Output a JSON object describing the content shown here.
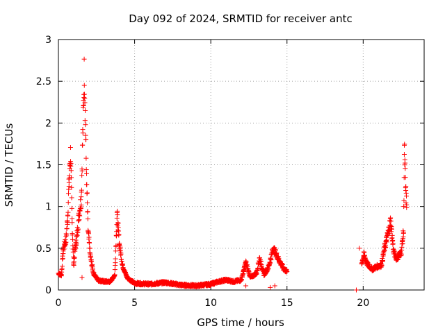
{
  "chart_data": {
    "type": "scatter",
    "title": "Day 092 of 2024, SRMTID for receiver antc",
    "xlabel": "GPS time / hours",
    "ylabel": "SRMTID / TECUs",
    "xlim": [
      0,
      24
    ],
    "ylim": [
      0,
      3
    ],
    "xticks": [
      0,
      5,
      10,
      15,
      20
    ],
    "xtick_labels": [
      "0",
      "5",
      "10",
      "15",
      "20"
    ],
    "yticks": [
      0,
      0.5,
      1,
      1.5,
      2,
      2.5,
      3
    ],
    "ytick_labels": [
      "0",
      "0.5",
      "1",
      "1.5",
      "2",
      "2.5",
      "3"
    ],
    "grid": true,
    "marker": "+",
    "color": "#ff0000",
    "anchors": [
      [
        0.0,
        0.2
      ],
      [
        0.2,
        0.18
      ],
      [
        0.3,
        0.45
      ],
      [
        0.4,
        0.55
      ],
      [
        0.5,
        0.6
      ],
      [
        0.6,
        0.85
      ],
      [
        0.7,
        1.3
      ],
      [
        0.8,
        1.65
      ],
      [
        0.9,
        0.8
      ],
      [
        1.0,
        0.3
      ],
      [
        1.1,
        0.5
      ],
      [
        1.2,
        0.62
      ],
      [
        1.35,
        0.9
      ],
      [
        1.5,
        1.1
      ],
      [
        1.7,
        2.65
      ],
      [
        1.85,
        1.3
      ],
      [
        1.95,
        0.7
      ],
      [
        2.1,
        0.4
      ],
      [
        2.3,
        0.2
      ],
      [
        2.6,
        0.12
      ],
      [
        3.0,
        0.1
      ],
      [
        3.4,
        0.1
      ],
      [
        3.7,
        0.18
      ],
      [
        3.85,
        0.9
      ],
      [
        4.0,
        0.55
      ],
      [
        4.2,
        0.3
      ],
      [
        4.5,
        0.15
      ],
      [
        5.0,
        0.08
      ],
      [
        6.0,
        0.07
      ],
      [
        7.0,
        0.09
      ],
      [
        8.0,
        0.06
      ],
      [
        9.0,
        0.05
      ],
      [
        10.0,
        0.07
      ],
      [
        10.5,
        0.1
      ],
      [
        11.0,
        0.12
      ],
      [
        11.5,
        0.1
      ],
      [
        12.0,
        0.12
      ],
      [
        12.3,
        0.33
      ],
      [
        12.6,
        0.15
      ],
      [
        13.0,
        0.2
      ],
      [
        13.2,
        0.38
      ],
      [
        13.5,
        0.18
      ],
      [
        13.8,
        0.28
      ],
      [
        14.1,
        0.5
      ],
      [
        14.5,
        0.35
      ],
      [
        14.8,
        0.25
      ],
      [
        15.0,
        0.22
      ]
    ],
    "anchors2": [
      [
        19.9,
        0.32
      ],
      [
        20.05,
        0.42
      ],
      [
        20.3,
        0.3
      ],
      [
        20.6,
        0.25
      ],
      [
        20.9,
        0.28
      ],
      [
        21.2,
        0.3
      ],
      [
        21.4,
        0.5
      ],
      [
        21.6,
        0.65
      ],
      [
        21.8,
        0.83
      ],
      [
        22.0,
        0.45
      ],
      [
        22.2,
        0.38
      ],
      [
        22.5,
        0.45
      ],
      [
        22.65,
        0.7
      ],
      [
        22.7,
        1.68
      ],
      [
        22.8,
        1.15
      ],
      [
        22.85,
        1.02
      ]
    ],
    "extra_points": [
      [
        1.55,
        0.15
      ],
      [
        19.55,
        0.0
      ],
      [
        19.75,
        0.5
      ],
      [
        14.2,
        0.05
      ],
      [
        12.3,
        0.05
      ],
      [
        13.9,
        0.03
      ]
    ]
  }
}
